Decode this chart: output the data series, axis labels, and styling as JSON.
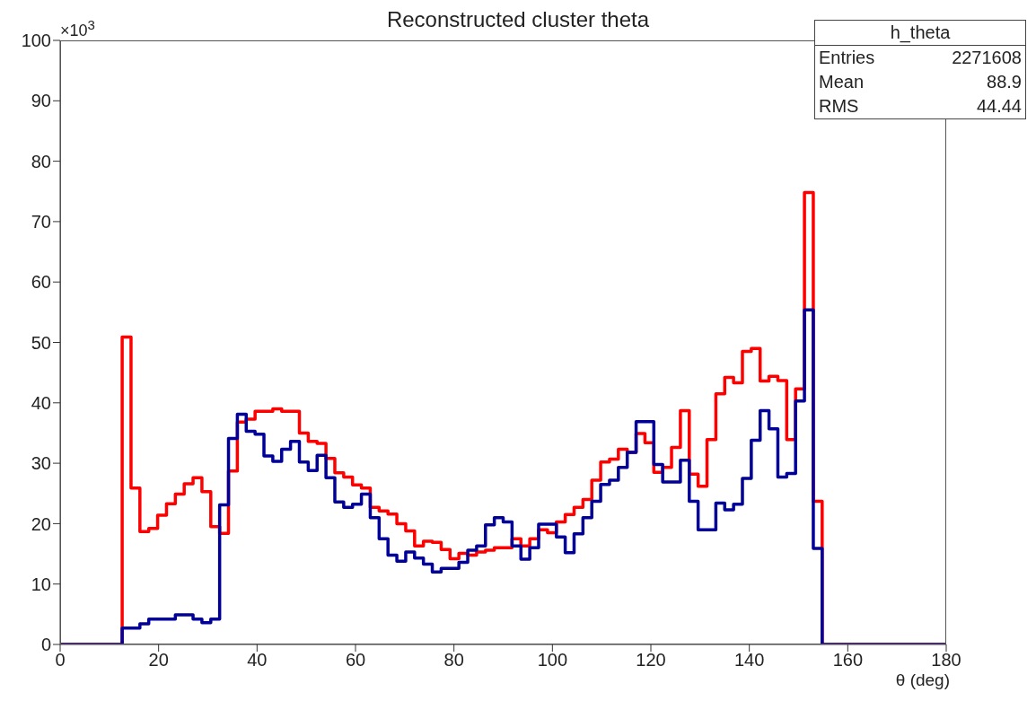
{
  "chart_data": {
    "type": "histogram",
    "title": "Reconstructed cluster theta",
    "xlabel": "θ (deg)",
    "annotations": [
      "×10$^{3}$",
      "h_theta",
      "Entries 2271608",
      "Mean 88.9",
      "RMS 44.44"
    ],
    "bins": [
      0,
      1.8,
      3.6,
      5.4,
      7.2,
      9,
      10.8,
      12.6,
      14.4,
      16.2,
      18,
      19.8,
      21.6,
      23.4,
      25.2,
      27,
      28.8,
      30.6,
      32.4,
      34.2,
      36,
      37.8,
      39.6,
      41.4,
      43.2,
      45,
      46.8,
      48.6,
      50.4,
      52.2,
      54,
      55.8,
      57.6,
      59.4,
      61.2,
      63,
      64.8,
      66.6,
      68.4,
      70.2,
      72,
      73.8,
      75.6,
      77.4,
      79.2,
      81,
      82.8,
      84.6,
      86.4,
      88.2,
      90,
      91.8,
      93.6,
      95.4,
      97.2,
      99,
      100.8,
      102.6,
      104.4,
      106.2,
      108,
      109.8,
      111.6,
      113.4,
      115.2,
      117,
      118.8,
      120.6,
      122.4,
      124.2,
      126,
      127.8,
      129.6,
      131.4,
      133.2,
      135,
      136.8,
      138.6,
      140.4,
      142.2,
      144,
      145.8,
      147.6,
      149.4,
      151.2,
      153,
      154.8,
      156.6,
      158.4,
      160.2,
      162,
      163.8,
      165.6,
      167.4,
      169.2,
      171,
      172.8,
      174.6,
      176.4,
      178.2,
      180
    ],
    "series": [
      {
        "color": "#ff0000",
        "values": [
          0,
          0,
          0,
          0,
          0,
          0,
          0,
          50.9,
          25.9,
          18.7,
          19.2,
          21.4,
          23.3,
          24.9,
          26.6,
          27.6,
          25.3,
          19.5,
          18.4,
          28.7,
          36.8,
          37.3,
          38.6,
          38.6,
          39.0,
          38.6,
          38.6,
          35.0,
          33.6,
          33.3,
          30.8,
          28.4,
          27.7,
          26.4,
          25.9,
          22.7,
          22.1,
          21.6,
          20.0,
          18.8,
          16.3,
          17.1,
          16.9,
          15.7,
          14.2,
          15.1,
          14.8,
          15.3,
          15.6,
          16.0,
          16.0,
          17.5,
          16.3,
          17.5,
          19.0,
          18.5,
          20.3,
          21.5,
          22.7,
          24.0,
          27.2,
          30.2,
          30.7,
          32.3,
          31.8,
          34.9,
          33.4,
          28.5,
          29.3,
          32.6,
          38.7,
          28.2,
          26.2,
          33.9,
          41.5,
          44.2,
          43.3,
          48.5,
          49.0,
          43.6,
          44.4,
          43.7,
          33.9,
          42.3,
          74.8,
          23.7,
          0,
          0,
          0,
          0,
          0,
          0,
          0,
          0,
          0,
          0,
          0,
          0,
          0,
          0
        ]
      },
      {
        "color": "#000099",
        "values": [
          0,
          0,
          0,
          0,
          0,
          0,
          0,
          2.7,
          2.7,
          3.4,
          4.2,
          4.2,
          4.2,
          4.9,
          4.9,
          4.2,
          3.6,
          4.2,
          23.1,
          34.1,
          38.1,
          35.3,
          34.8,
          31.2,
          30.3,
          32.3,
          33.6,
          30.2,
          28.8,
          31.3,
          27.6,
          23.6,
          22.7,
          23.2,
          24.9,
          21.0,
          17.5,
          14.8,
          13.8,
          15.3,
          14.3,
          13.3,
          12.0,
          12.6,
          12.6,
          13.6,
          15.6,
          16.3,
          19.8,
          21.0,
          20.3,
          16.3,
          14.1,
          16.0,
          19.9,
          19.9,
          17.8,
          15.2,
          18.3,
          21.0,
          23.7,
          26.5,
          27.2,
          29.3,
          31.8,
          36.9,
          36.9,
          29.8,
          26.9,
          26.9,
          30.5,
          23.7,
          19.0,
          19.0,
          23.4,
          22.3,
          23.2,
          27.5,
          33.8,
          38.7,
          35.7,
          27.7,
          28.3,
          40.3,
          55.4,
          15.9,
          0,
          0,
          0,
          0,
          0,
          0,
          0,
          0,
          0,
          0,
          0,
          0,
          0,
          0
        ]
      }
    ],
    "xlim": [
      0,
      180
    ],
    "xticks": [
      0,
      20,
      40,
      60,
      80,
      100,
      120,
      140,
      160,
      180
    ],
    "ylim": [
      0,
      100
    ],
    "yticks": [
      0,
      10,
      20,
      30,
      40,
      50,
      60,
      70,
      80,
      90,
      100
    ]
  }
}
